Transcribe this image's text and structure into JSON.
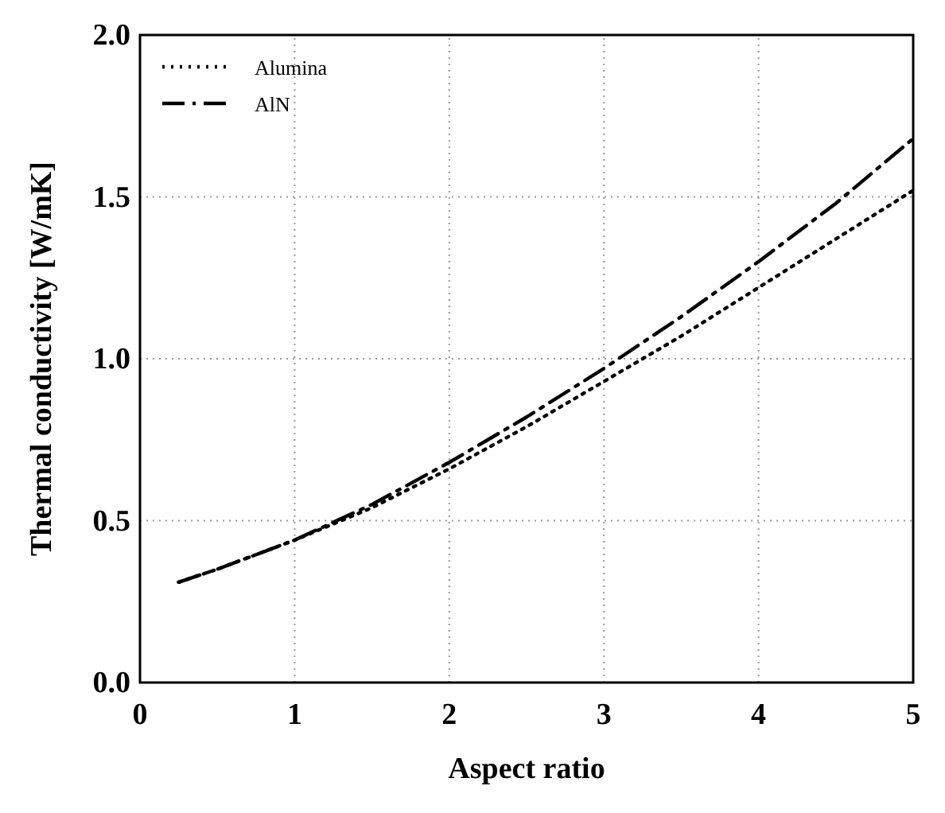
{
  "chart_data": {
    "type": "line",
    "xlabel": "Aspect ratio",
    "ylabel": "Thermal conductivity [W/mK]",
    "xlim": [
      0,
      5
    ],
    "ylim": [
      0,
      2
    ],
    "xticks": [
      0,
      1,
      2,
      3,
      4,
      5
    ],
    "yticks": [
      {
        "value": 0,
        "label": "0.0"
      },
      0.5,
      {
        "value": 1,
        "label": "1.0"
      },
      1.5,
      {
        "value": 2,
        "label": "2.0"
      }
    ],
    "grid": true,
    "legend": "top left",
    "x": [
      0.25,
      0.5,
      1,
      1.5,
      2,
      2.5,
      3,
      3.5,
      4,
      4.5,
      5
    ],
    "series": [
      {
        "name": "Alumina",
        "color": "#000000",
        "line_style": "dotted",
        "values": [
          0.31,
          0.35,
          0.44,
          0.54,
          0.66,
          0.79,
          0.93,
          1.07,
          1.22,
          1.37,
          1.52
        ]
      },
      {
        "name": "AlN",
        "color": "#000000",
        "line_style": "dashdot",
        "values": [
          0.31,
          0.35,
          0.44,
          0.55,
          0.68,
          0.82,
          0.97,
          1.13,
          1.3,
          1.48,
          1.68
        ]
      }
    ]
  }
}
